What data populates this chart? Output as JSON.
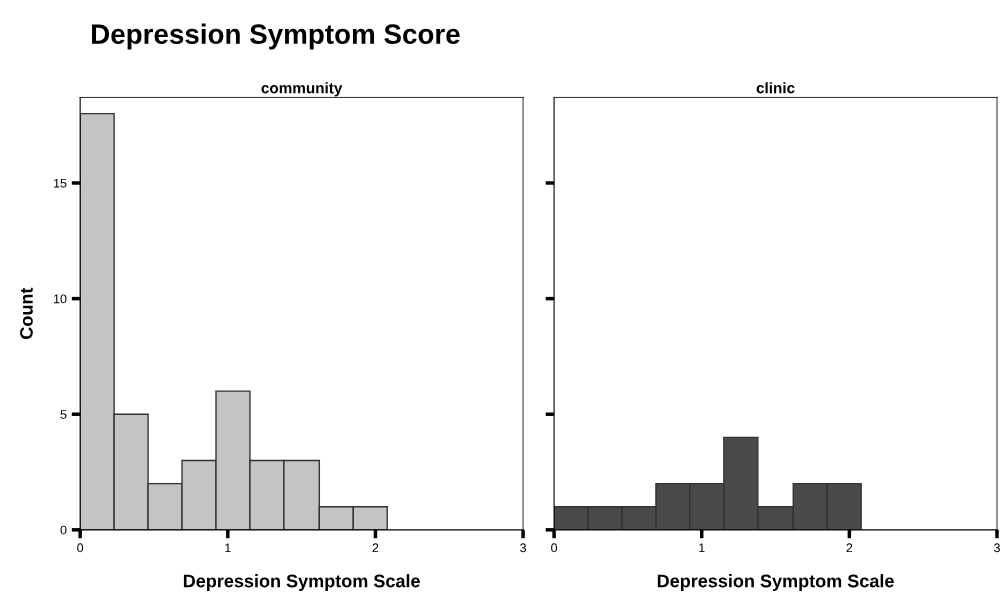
{
  "chart_data": [
    {
      "type": "histogram",
      "title": "Depression Symptom Score",
      "subtitle": "community",
      "xlabel": "Depression Symptom Scale",
      "ylabel": "Count",
      "bins": [
        0,
        0.23,
        0.46,
        0.69,
        0.92,
        1.15,
        1.38,
        1.62,
        1.85,
        2.08
      ],
      "values": [
        18,
        5,
        2,
        3,
        6,
        3,
        3,
        1,
        1
      ],
      "color": "#c4c4c4",
      "xlim": [
        0,
        3
      ],
      "xticks": [
        0,
        1,
        2,
        3
      ],
      "ylim": [
        0,
        18.7
      ],
      "yticks": [
        0,
        5,
        10,
        15
      ],
      "grid": false
    },
    {
      "type": "histogram",
      "subtitle": "clinic",
      "xlabel": "Depression Symptom Scale",
      "bins": [
        0,
        0.23,
        0.46,
        0.69,
        0.92,
        1.15,
        1.38,
        1.62,
        1.85,
        2.08
      ],
      "values": [
        1,
        1,
        1,
        2,
        2,
        4,
        1,
        2,
        2
      ],
      "color": "#4a4a4a",
      "xlim": [
        0,
        3
      ],
      "xticks": [
        0,
        1,
        2,
        3
      ],
      "ylim": [
        0,
        18.7
      ],
      "yticks": [
        {
          "value": 0,
          "label": null
        },
        {
          "value": 5,
          "label": null
        },
        {
          "value": 10,
          "label": null
        },
        {
          "value": 15,
          "label": null
        }
      ],
      "tick_labels": "x",
      "grid": false
    }
  ]
}
